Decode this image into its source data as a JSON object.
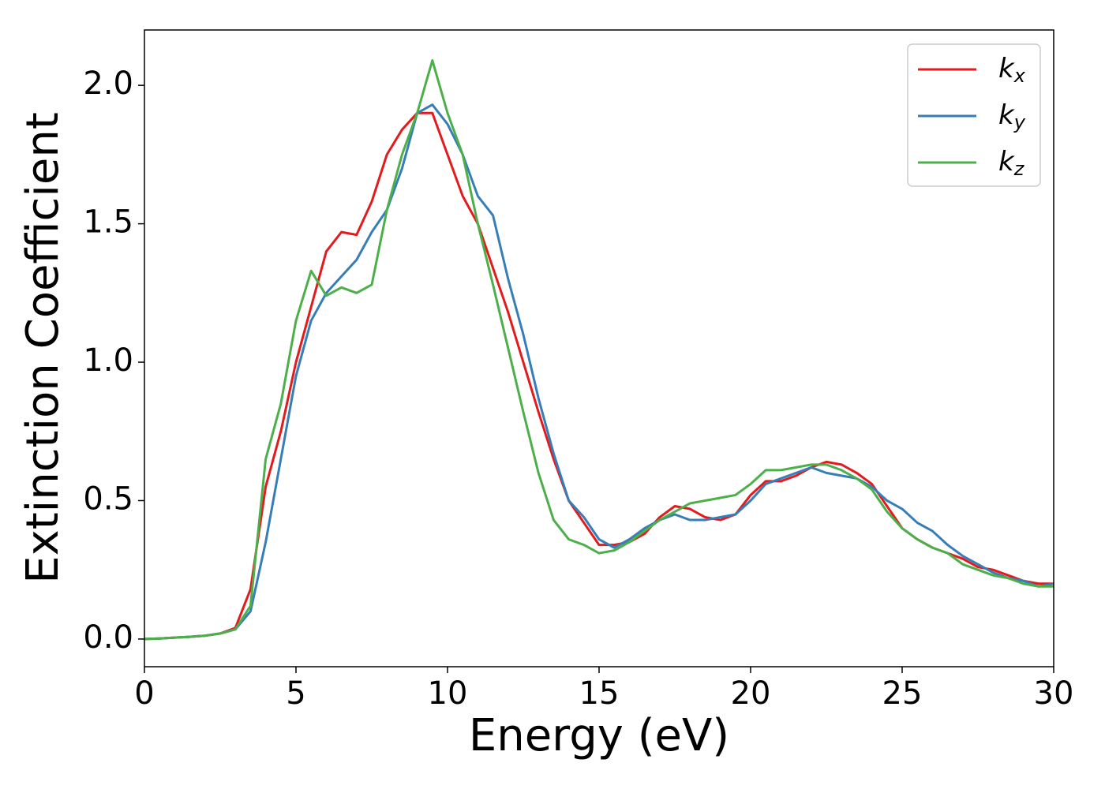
{
  "chart_data": {
    "type": "line",
    "xlabel": "Energy (eV)",
    "ylabel": "Extinction Coefficient",
    "x": [
      0,
      0.5,
      1,
      1.5,
      2,
      2.5,
      3,
      3.5,
      4,
      4.5,
      5,
      5.5,
      6,
      6.5,
      7,
      7.5,
      8,
      8.5,
      9,
      9.5,
      10,
      10.5,
      11,
      11.5,
      12,
      12.5,
      13,
      13.5,
      14,
      14.5,
      15,
      15.5,
      16,
      16.5,
      17,
      17.5,
      18,
      18.5,
      19,
      19.5,
      20,
      20.5,
      21,
      21.5,
      22,
      22.5,
      23,
      23.5,
      24,
      24.5,
      25,
      25.5,
      26,
      26.5,
      27,
      27.5,
      28,
      28.5,
      29,
      29.5,
      30
    ],
    "series": [
      {
        "name": "kx",
        "color": "#e41a1c",
        "values": [
          0,
          0.002,
          0.005,
          0.008,
          0.012,
          0.02,
          0.04,
          0.18,
          0.55,
          0.75,
          1.0,
          1.2,
          1.4,
          1.47,
          1.46,
          1.58,
          1.75,
          1.84,
          1.9,
          1.9,
          1.75,
          1.6,
          1.5,
          1.34,
          1.18,
          1.0,
          0.82,
          0.65,
          0.5,
          0.42,
          0.34,
          0.34,
          0.35,
          0.38,
          0.44,
          0.48,
          0.47,
          0.44,
          0.43,
          0.45,
          0.52,
          0.57,
          0.57,
          0.59,
          0.62,
          0.64,
          0.63,
          0.6,
          0.56,
          0.48,
          0.4,
          0.36,
          0.33,
          0.31,
          0.29,
          0.26,
          0.25,
          0.23,
          0.21,
          0.2,
          0.2
        ]
      },
      {
        "name": "ky",
        "color": "#377eb8",
        "values": [
          0,
          0.002,
          0.005,
          0.008,
          0.012,
          0.02,
          0.035,
          0.1,
          0.35,
          0.65,
          0.95,
          1.15,
          1.25,
          1.31,
          1.37,
          1.47,
          1.55,
          1.7,
          1.9,
          1.93,
          1.86,
          1.75,
          1.6,
          1.53,
          1.3,
          1.1,
          0.87,
          0.67,
          0.5,
          0.44,
          0.36,
          0.33,
          0.36,
          0.4,
          0.43,
          0.45,
          0.43,
          0.43,
          0.44,
          0.45,
          0.5,
          0.56,
          0.58,
          0.6,
          0.62,
          0.6,
          0.59,
          0.58,
          0.55,
          0.5,
          0.47,
          0.42,
          0.39,
          0.34,
          0.3,
          0.27,
          0.24,
          0.22,
          0.21,
          0.19,
          0.2
        ]
      },
      {
        "name": "kz",
        "color": "#4daf4a",
        "values": [
          0,
          0.002,
          0.005,
          0.008,
          0.012,
          0.02,
          0.035,
          0.12,
          0.65,
          0.85,
          1.15,
          1.33,
          1.24,
          1.27,
          1.25,
          1.28,
          1.55,
          1.75,
          1.9,
          2.09,
          1.9,
          1.75,
          1.5,
          1.28,
          1.05,
          0.82,
          0.6,
          0.43,
          0.36,
          0.34,
          0.31,
          0.32,
          0.35,
          0.39,
          0.43,
          0.46,
          0.49,
          0.5,
          0.51,
          0.52,
          0.56,
          0.61,
          0.61,
          0.62,
          0.63,
          0.63,
          0.61,
          0.58,
          0.54,
          0.46,
          0.4,
          0.36,
          0.33,
          0.31,
          0.27,
          0.25,
          0.23,
          0.22,
          0.2,
          0.19,
          0.19
        ]
      }
    ],
    "xlim": [
      0,
      30
    ],
    "xticks": [
      0,
      5,
      10,
      15,
      20,
      25,
      30
    ],
    "ylim": [
      -0.1,
      2.2
    ],
    "yticks": [
      {
        "value": 0,
        "label": "0.0"
      },
      0.5,
      {
        "value": 1,
        "label": "1.0"
      },
      1.5,
      {
        "value": 2,
        "label": "2.0"
      }
    ],
    "grid": false,
    "legend": "upper right"
  }
}
